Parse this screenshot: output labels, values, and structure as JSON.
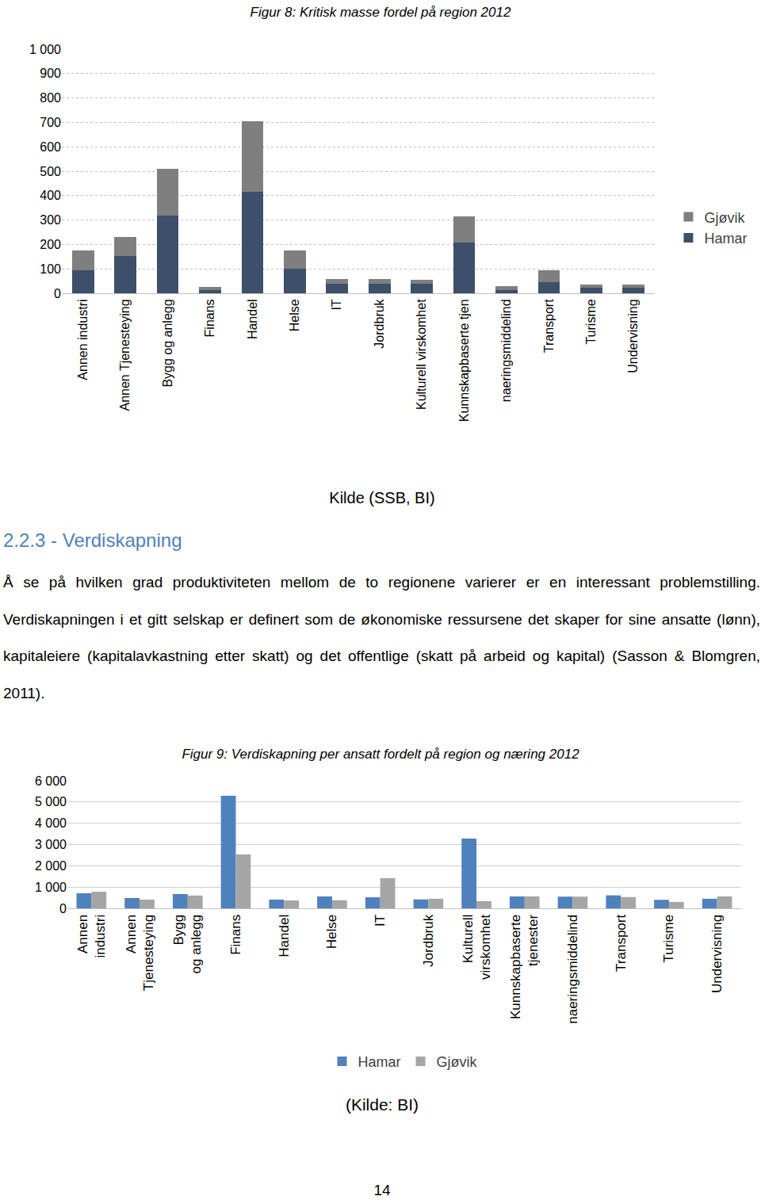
{
  "chart_data": [
    {
      "type": "bar",
      "title": "Figur 8: Kritisk masse fordel på region 2012",
      "stacked": true,
      "grid": true,
      "legend": "right",
      "categories": [
        "Annen industri",
        "Annen Tjenesteying",
        "Bygg og anlegg",
        "Finans",
        "Handel",
        "Helse",
        "IT",
        "Jordbruk",
        "Kulturell virskomhet",
        "Kunnskapbaserte tjen",
        "naeringsmiddelind",
        "Transport",
        "Turisme",
        "Undervisning"
      ],
      "series": [
        {
          "name": "Hamar",
          "color": "#3d4f6b",
          "values": [
            94,
            153,
            318,
            13,
            416,
            100,
            38,
            40,
            38,
            208,
            14,
            45,
            22,
            22
          ]
        },
        {
          "name": "Gjøvik",
          "color": "#7f7f7f",
          "values": [
            81,
            77,
            192,
            13,
            289,
            75,
            20,
            18,
            17,
            107,
            14,
            48,
            13,
            14
          ]
        }
      ],
      "ylim": [
        0,
        1000
      ],
      "yticks": [
        0,
        100,
        200,
        300,
        400,
        500,
        600,
        700,
        800,
        900,
        {
          "value": 1000,
          "label": "1 000"
        }
      ]
    },
    {
      "type": "bar",
      "title": "Figur 9: Verdiskapning per ansatt fordelt på region og næring 2012",
      "stacked": false,
      "grid": true,
      "legend": "bottom",
      "categories": [
        "Annen industri",
        "Annen Tjenesteying",
        "Bygg og anlegg",
        "Finans",
        "Handel",
        "Helse",
        "IT",
        "Jordbruk",
        "Kulturell virskomhet",
        "Kunnskapbaserte tjenester",
        "naeringsmiddelind",
        "Transport",
        "Turisme",
        "Undervisning"
      ],
      "series": [
        {
          "name": "Hamar",
          "color": "#4f81bd",
          "values": [
            708,
            485,
            670,
            5290,
            410,
            560,
            520,
            420,
            3280,
            560,
            550,
            610,
            400,
            450
          ]
        },
        {
          "name": "Gjøvik",
          "color": "#a5a5a5",
          "values": [
            780,
            410,
            600,
            2530,
            370,
            380,
            1420,
            450,
            340,
            560,
            550,
            530,
            300,
            560
          ]
        }
      ],
      "ylim": [
        0,
        6000
      ],
      "yticks": [
        0,
        {
          "value": 1000,
          "label": "1 000"
        },
        {
          "value": 2000,
          "label": "2 000"
        },
        {
          "value": 3000,
          "label": "3 000"
        },
        {
          "value": 4000,
          "label": "4 000"
        },
        {
          "value": 5000,
          "label": "5 000"
        },
        {
          "value": 6000,
          "label": "6 000"
        }
      ]
    }
  ],
  "document": {
    "source_1": "Kilde (SSB, BI)",
    "heading": "2.2.3 - Verdiskapning",
    "paragraph": "Å se på hvilken grad produktiviteten mellom de to regionene varierer er en interessant problemstilling. Verdiskapningen i et gitt selskap er definert som de økonomiske ressursene det skaper for sine ansatte (lønn), kapitaleiere (kapitalavkastning etter skatt) og det offentlige (skatt på arbeid og kapital) (Sasson & Blomgren, 2011).",
    "source_2": "(Kilde: BI)",
    "page_number": "14"
  }
}
